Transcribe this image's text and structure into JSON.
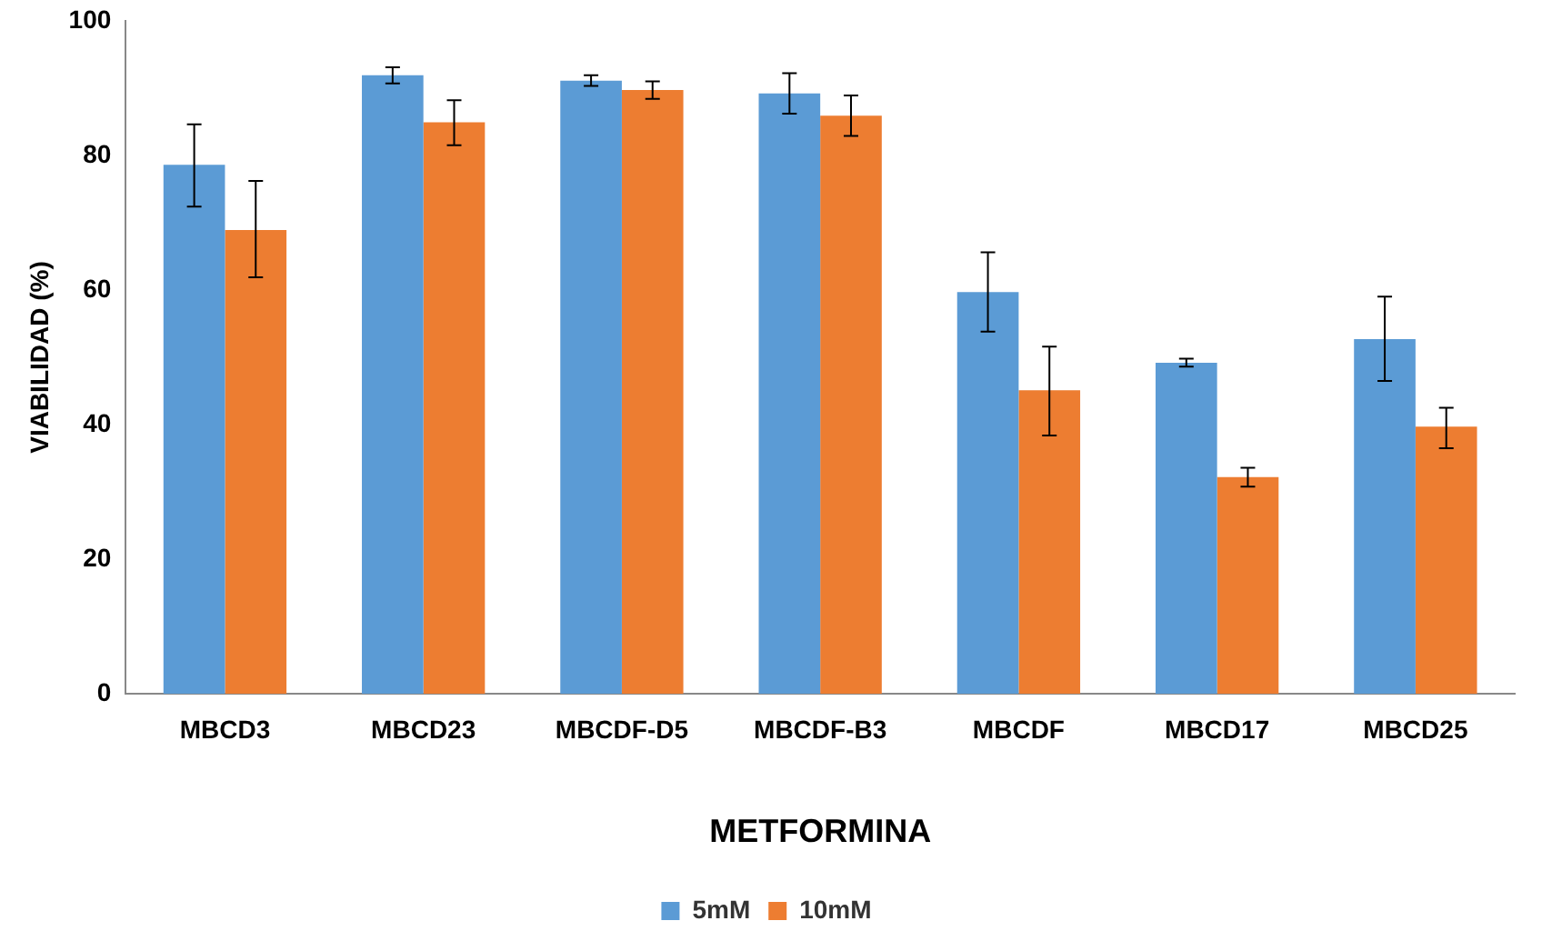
{
  "chart_data": {
    "type": "bar",
    "xlabel": "METFORMINA",
    "ylabel": "VIABILIDAD (%)",
    "categories": [
      "MBCD3",
      "MBCD23",
      "MBCDF-D5",
      "MBCDF-B3",
      "MBCDF",
      "MBCD17",
      "MBCD25"
    ],
    "series": [
      {
        "name": "5mM",
        "color": "#5b9bd5",
        "values": [
          78.6,
          91.9,
          91.1,
          89.2,
          59.7,
          49.2,
          52.7
        ],
        "errors": [
          [
            72.4,
            84.6
          ],
          [
            90.7,
            93.1
          ],
          [
            90.3,
            91.9
          ],
          [
            86.2,
            92.2
          ],
          [
            53.8,
            65.6
          ],
          [
            48.6,
            49.8
          ],
          [
            46.5,
            59
          ]
        ]
      },
      {
        "name": "10mM",
        "color": "#ed7d31",
        "values": [
          68.9,
          84.9,
          89.7,
          85.9,
          45.1,
          32.2,
          39.7
        ],
        "errors": [
          [
            61.9,
            76.2
          ],
          [
            81.5,
            88.2
          ],
          [
            88.4,
            91
          ],
          [
            82.9,
            88.9
          ],
          [
            38.4,
            51.6
          ],
          [
            30.8,
            33.6
          ],
          [
            36.5,
            42.5
          ]
        ]
      }
    ],
    "ylim": [
      0,
      100
    ],
    "yticks": [
      0,
      20,
      40,
      60,
      80,
      100
    ],
    "grid": false,
    "legend": "bottom"
  }
}
